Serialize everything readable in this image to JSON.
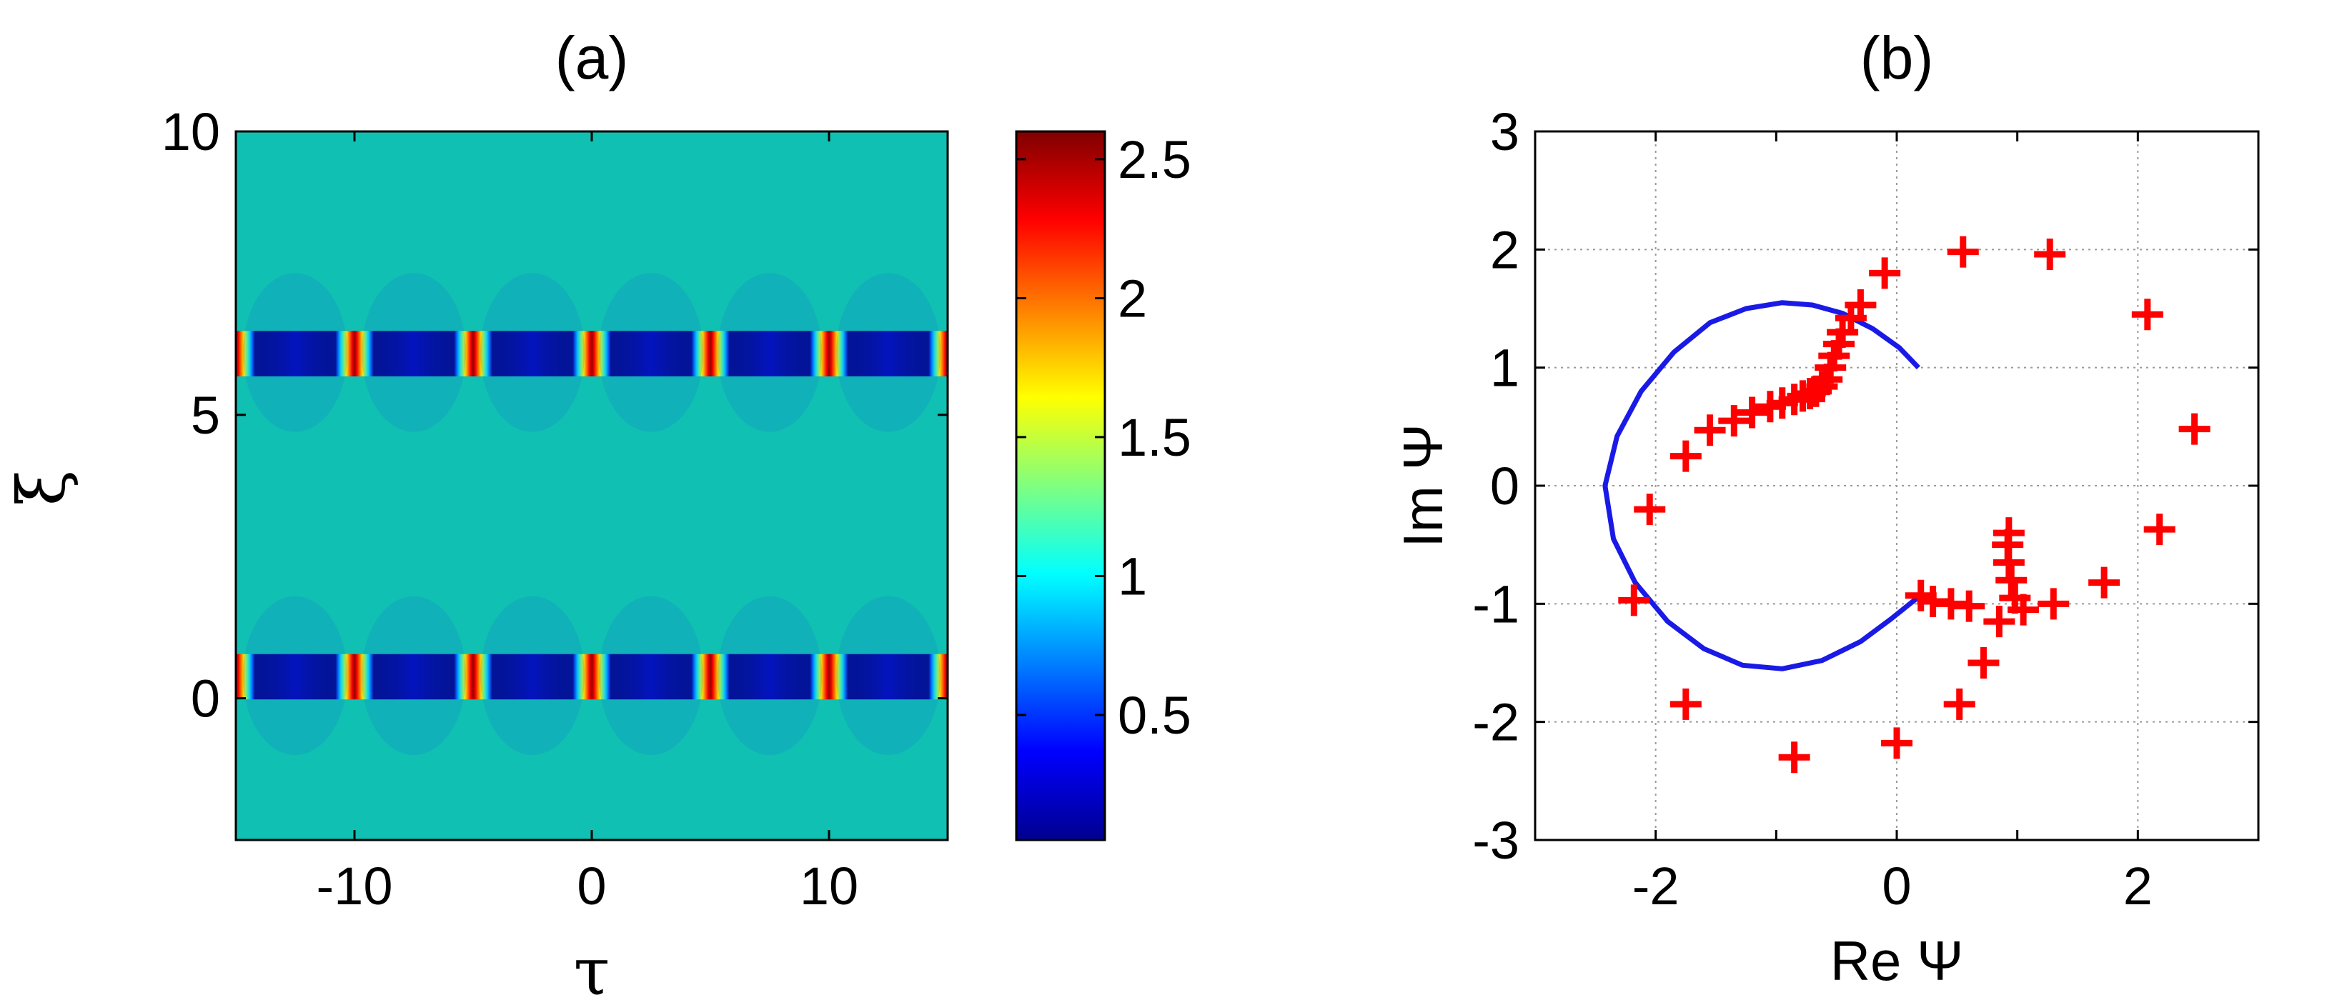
{
  "chart_data": [
    {
      "type": "heatmap",
      "title": "(a)",
      "xlabel": "τ",
      "ylabel": "ξ",
      "xlim": [
        -15,
        15
      ],
      "ylim": [
        -2.5,
        10
      ],
      "xticks": [
        -10,
        0,
        10
      ],
      "yticks": [
        0,
        5,
        10
      ],
      "colormap": "jet",
      "background_value": 0.9,
      "peak_times": [
        -15,
        -10,
        -5,
        0,
        5,
        10,
        15
      ],
      "peak_xi": [
        0.4,
        6.1
      ],
      "colorbar": {
        "min": 0.05,
        "max": 2.6,
        "ticks": [
          0.5,
          1,
          1.5,
          2,
          2.5
        ]
      }
    },
    {
      "type": "scatter",
      "title": "(b)",
      "xlabel": "Re Ψ",
      "ylabel": "Im Ψ",
      "xlim": [
        -3,
        3
      ],
      "ylim": [
        -3,
        3
      ],
      "xticks": [
        -2,
        0,
        2
      ],
      "yticks": [
        -3,
        -2,
        -1,
        0,
        1,
        2,
        3
      ],
      "grid": true,
      "series": [
        {
          "kind": "line",
          "color": "#1a1ae6",
          "points": [
            [
              0.18,
              1.0
            ],
            [
              0.02,
              1.17
            ],
            [
              -0.2,
              1.33
            ],
            [
              -0.45,
              1.46
            ],
            [
              -0.7,
              1.53
            ],
            [
              -0.95,
              1.55
            ],
            [
              -1.25,
              1.5
            ],
            [
              -1.55,
              1.38
            ],
            [
              -1.85,
              1.13
            ],
            [
              -2.12,
              0.8
            ],
            [
              -2.32,
              0.42
            ],
            [
              -2.42,
              0.0
            ],
            [
              -2.35,
              -0.45
            ],
            [
              -2.17,
              -0.82
            ],
            [
              -1.9,
              -1.15
            ],
            [
              -1.6,
              -1.38
            ],
            [
              -1.28,
              -1.52
            ],
            [
              -0.95,
              -1.55
            ],
            [
              -0.62,
              -1.48
            ],
            [
              -0.3,
              -1.32
            ],
            [
              -0.05,
              -1.13
            ],
            [
              0.17,
              -0.95
            ]
          ]
        },
        {
          "kind": "markers",
          "marker": "+",
          "color": "#ff0000",
          "points": [
            [
              -2.05,
              -0.2
            ],
            [
              -1.75,
              0.25
            ],
            [
              -1.55,
              0.47
            ],
            [
              -1.35,
              0.55
            ],
            [
              -1.2,
              0.62
            ],
            [
              -1.05,
              0.67
            ],
            [
              -0.95,
              0.7
            ],
            [
              -0.85,
              0.73
            ],
            [
              -0.78,
              0.76
            ],
            [
              -0.72,
              0.78
            ],
            [
              -0.67,
              0.8
            ],
            [
              -0.62,
              0.84
            ],
            [
              -0.58,
              0.9
            ],
            [
              -0.55,
              1.0
            ],
            [
              -0.52,
              1.1
            ],
            [
              -0.48,
              1.2
            ],
            [
              -0.45,
              1.3
            ],
            [
              -0.38,
              1.42
            ],
            [
              -0.3,
              1.53
            ],
            [
              -0.1,
              1.8
            ],
            [
              0.55,
              1.98
            ],
            [
              1.27,
              1.96
            ],
            [
              2.08,
              1.45
            ],
            [
              2.47,
              0.48
            ],
            [
              2.18,
              -0.37
            ],
            [
              1.72,
              -0.82
            ],
            [
              1.3,
              -1.0
            ],
            [
              1.05,
              -1.05
            ],
            [
              0.98,
              -0.95
            ],
            [
              0.95,
              -0.8
            ],
            [
              0.93,
              -0.65
            ],
            [
              0.92,
              -0.5
            ],
            [
              0.93,
              -0.4
            ],
            [
              0.85,
              -1.15
            ],
            [
              0.72,
              -1.5
            ],
            [
              0.52,
              -1.85
            ],
            [
              0.0,
              -2.18
            ],
            [
              -0.85,
              -2.3
            ],
            [
              -1.75,
              -1.85
            ],
            [
              -2.18,
              -0.97
            ],
            [
              0.6,
              -1.02
            ],
            [
              0.45,
              -1.0
            ],
            [
              0.3,
              -0.98
            ],
            [
              0.2,
              -0.93
            ]
          ]
        }
      ]
    }
  ]
}
